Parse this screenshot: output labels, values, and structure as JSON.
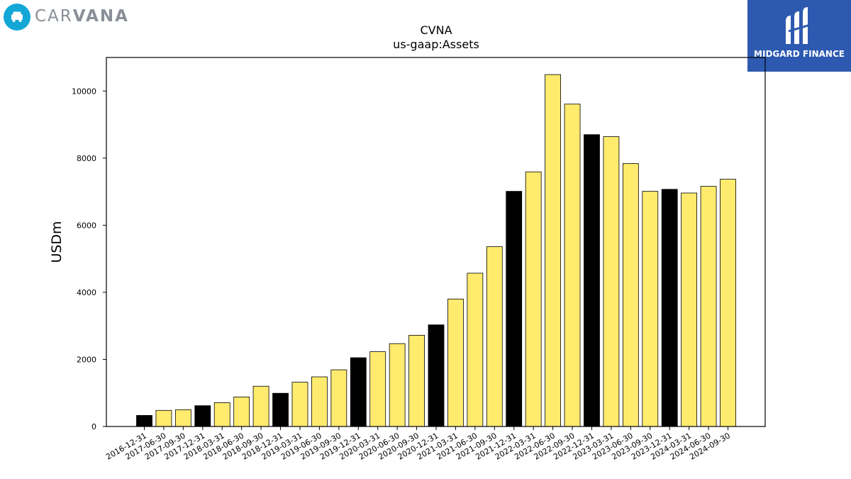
{
  "logos": {
    "carvana": {
      "text_light": "CAR",
      "text_bold": "VANA"
    },
    "midgard": {
      "name": "MIDGARD FINANCE"
    }
  },
  "colors": {
    "annual": "#000000",
    "quarterly": "#ffeb6e",
    "edge": "#000000",
    "midgard_bg": "#2d5ab0",
    "carvana_blue": "#12a7d6"
  },
  "chart_data": {
    "type": "bar",
    "title": "CVNA",
    "subtitle": "us-gaap:Assets",
    "xlabel": "",
    "ylabel": "USDm",
    "ylim": [
      0,
      11000
    ],
    "yticks": [
      0,
      2000,
      4000,
      6000,
      8000,
      10000
    ],
    "grid": false,
    "categories": [
      "2016-12-31",
      "2017-06-30",
      "2017-09-30",
      "2017-12-31",
      "2018-03-31",
      "2018-06-30",
      "2018-09-30",
      "2018-12-31",
      "2019-03-31",
      "2019-06-30",
      "2019-09-30",
      "2019-12-31",
      "2020-03-31",
      "2020-06-30",
      "2020-09-30",
      "2020-12-31",
      "2021-03-31",
      "2021-06-30",
      "2021-09-30",
      "2021-12-31",
      "2022-03-31",
      "2022-06-30",
      "2022-09-30",
      "2022-12-31",
      "2023-03-31",
      "2023-06-30",
      "2023-09-30",
      "2023-12-31",
      "2024-03-31",
      "2024-06-30",
      "2024-09-30"
    ],
    "values": [
      330,
      480,
      500,
      620,
      710,
      880,
      1200,
      990,
      1320,
      1480,
      1690,
      2050,
      2230,
      2470,
      2720,
      3030,
      3800,
      4570,
      5360,
      7010,
      7590,
      10490,
      9610,
      8700,
      8640,
      7840,
      7010,
      7070,
      6960,
      7160,
      7370
    ],
    "bar_type": [
      "annual",
      "quarterly",
      "quarterly",
      "annual",
      "quarterly",
      "quarterly",
      "quarterly",
      "annual",
      "quarterly",
      "quarterly",
      "quarterly",
      "annual",
      "quarterly",
      "quarterly",
      "quarterly",
      "annual",
      "quarterly",
      "quarterly",
      "quarterly",
      "annual",
      "quarterly",
      "quarterly",
      "quarterly",
      "annual",
      "quarterly",
      "quarterly",
      "quarterly",
      "annual",
      "quarterly",
      "quarterly",
      "quarterly"
    ]
  }
}
